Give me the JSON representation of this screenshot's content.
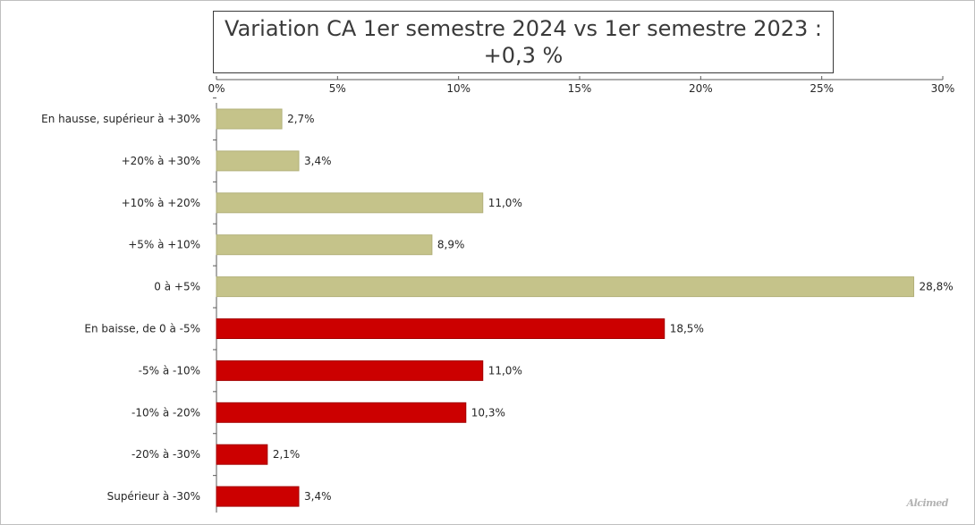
{
  "title": {
    "line1": "Variation CA 1er semestre 2024 vs 1er semestre 2023 :",
    "line2": "+0,3 %"
  },
  "colors": {
    "positive": "#c5c38a",
    "negative": "#cc0000",
    "axis": "#595959",
    "text": "#262626"
  },
  "chart_data": {
    "type": "bar",
    "orientation": "horizontal",
    "categories": [
      "En hausse, supérieur à +30%",
      "+20% à +30%",
      "+10% à +20%",
      "+5% à +10%",
      "0 à +5%",
      "En baisse, de 0 à -5%",
      "-5% à -10%",
      "-10% à -20%",
      "-20% à -30%",
      "Supérieur à -30%"
    ],
    "values": [
      2.7,
      3.4,
      11.0,
      8.9,
      28.8,
      18.5,
      11.0,
      10.3,
      2.1,
      3.4
    ],
    "value_labels": [
      "2,7%",
      "3,4%",
      "11,0%",
      "8,9%",
      "28,8%",
      "18,5%",
      "11,0%",
      "10,3%",
      "2,1%",
      "3,4%"
    ],
    "bar_colors": [
      "positive",
      "positive",
      "positive",
      "positive",
      "positive",
      "negative",
      "negative",
      "negative",
      "negative",
      "negative"
    ],
    "x_ticks": [
      0,
      5,
      10,
      15,
      20,
      25,
      30
    ],
    "x_tick_labels": [
      "0%",
      "5%",
      "10%",
      "15%",
      "20%",
      "25%",
      "30%"
    ],
    "xlim": [
      0,
      30
    ],
    "x_axis_position": "top",
    "grid": false,
    "legend": "none"
  }
}
